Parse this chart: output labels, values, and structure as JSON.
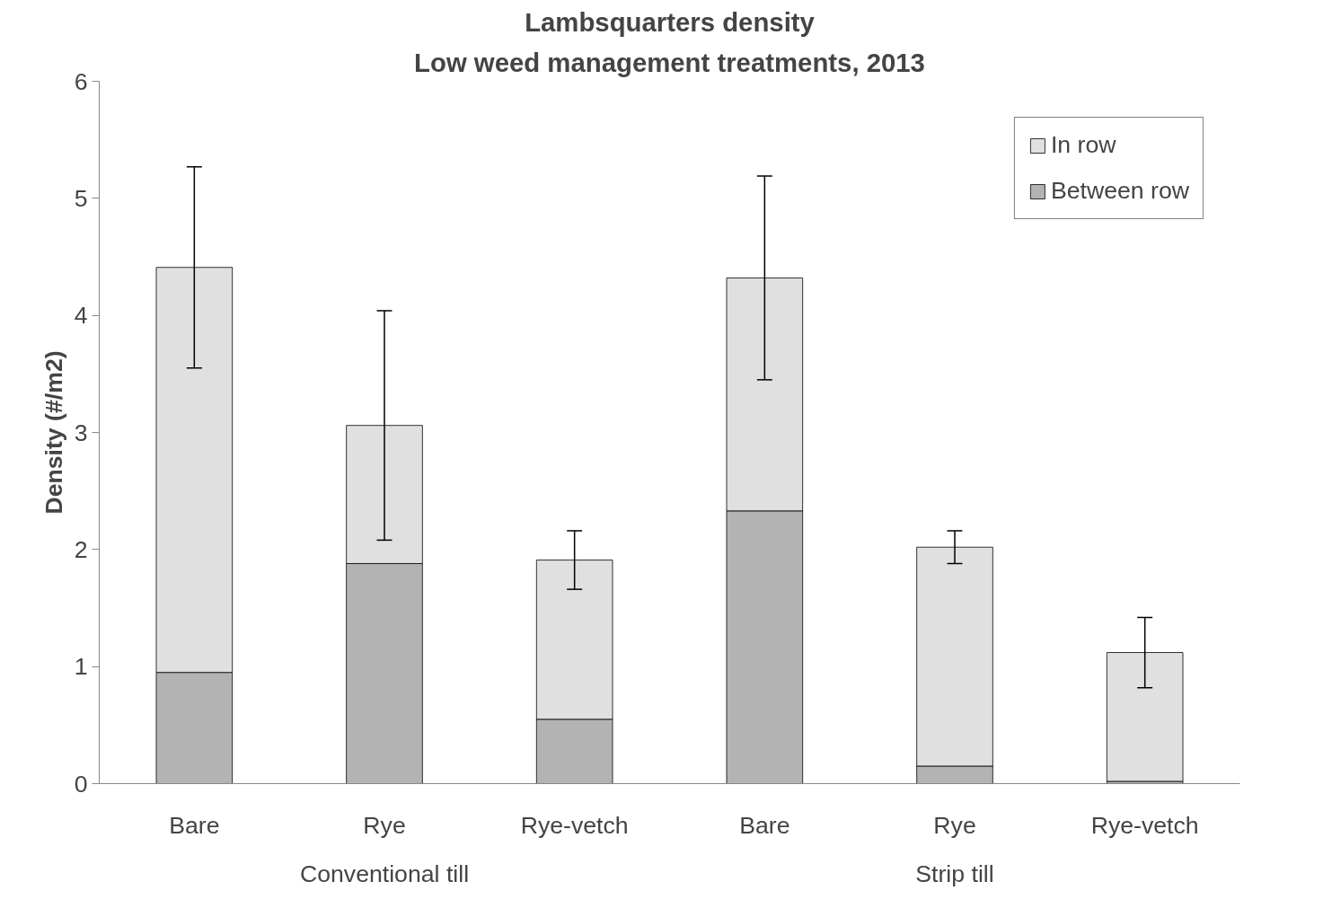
{
  "chart_data": {
    "type": "bar",
    "title": "Lambsquarters density",
    "subtitle": "Low weed management treatments, 2013",
    "ylabel": "Density (#/m2)",
    "categories": [
      "Bare",
      "Rye",
      "Rye-vetch",
      "Bare",
      "Rye",
      "Rye-vetch"
    ],
    "annotations": [
      "Conventional till",
      "Strip till"
    ],
    "stacked": true,
    "series": [
      {
        "name": "Between row",
        "color": "#b3b3b3",
        "values": [
          0.95,
          1.88,
          0.55,
          2.33,
          0.15,
          0.02
        ]
      },
      {
        "name": "In row",
        "color": "#e0e0e0",
        "values": [
          3.46,
          1.18,
          1.36,
          1.99,
          1.87,
          1.1
        ],
        "errors": [
          0.86,
          0.98,
          0.25,
          0.87,
          0.14,
          0.3
        ]
      }
    ],
    "ylim": [
      0,
      6
    ],
    "yticks": [
      0,
      1,
      2,
      3,
      4,
      5,
      6
    ],
    "grid": false,
    "legend": "top right"
  }
}
